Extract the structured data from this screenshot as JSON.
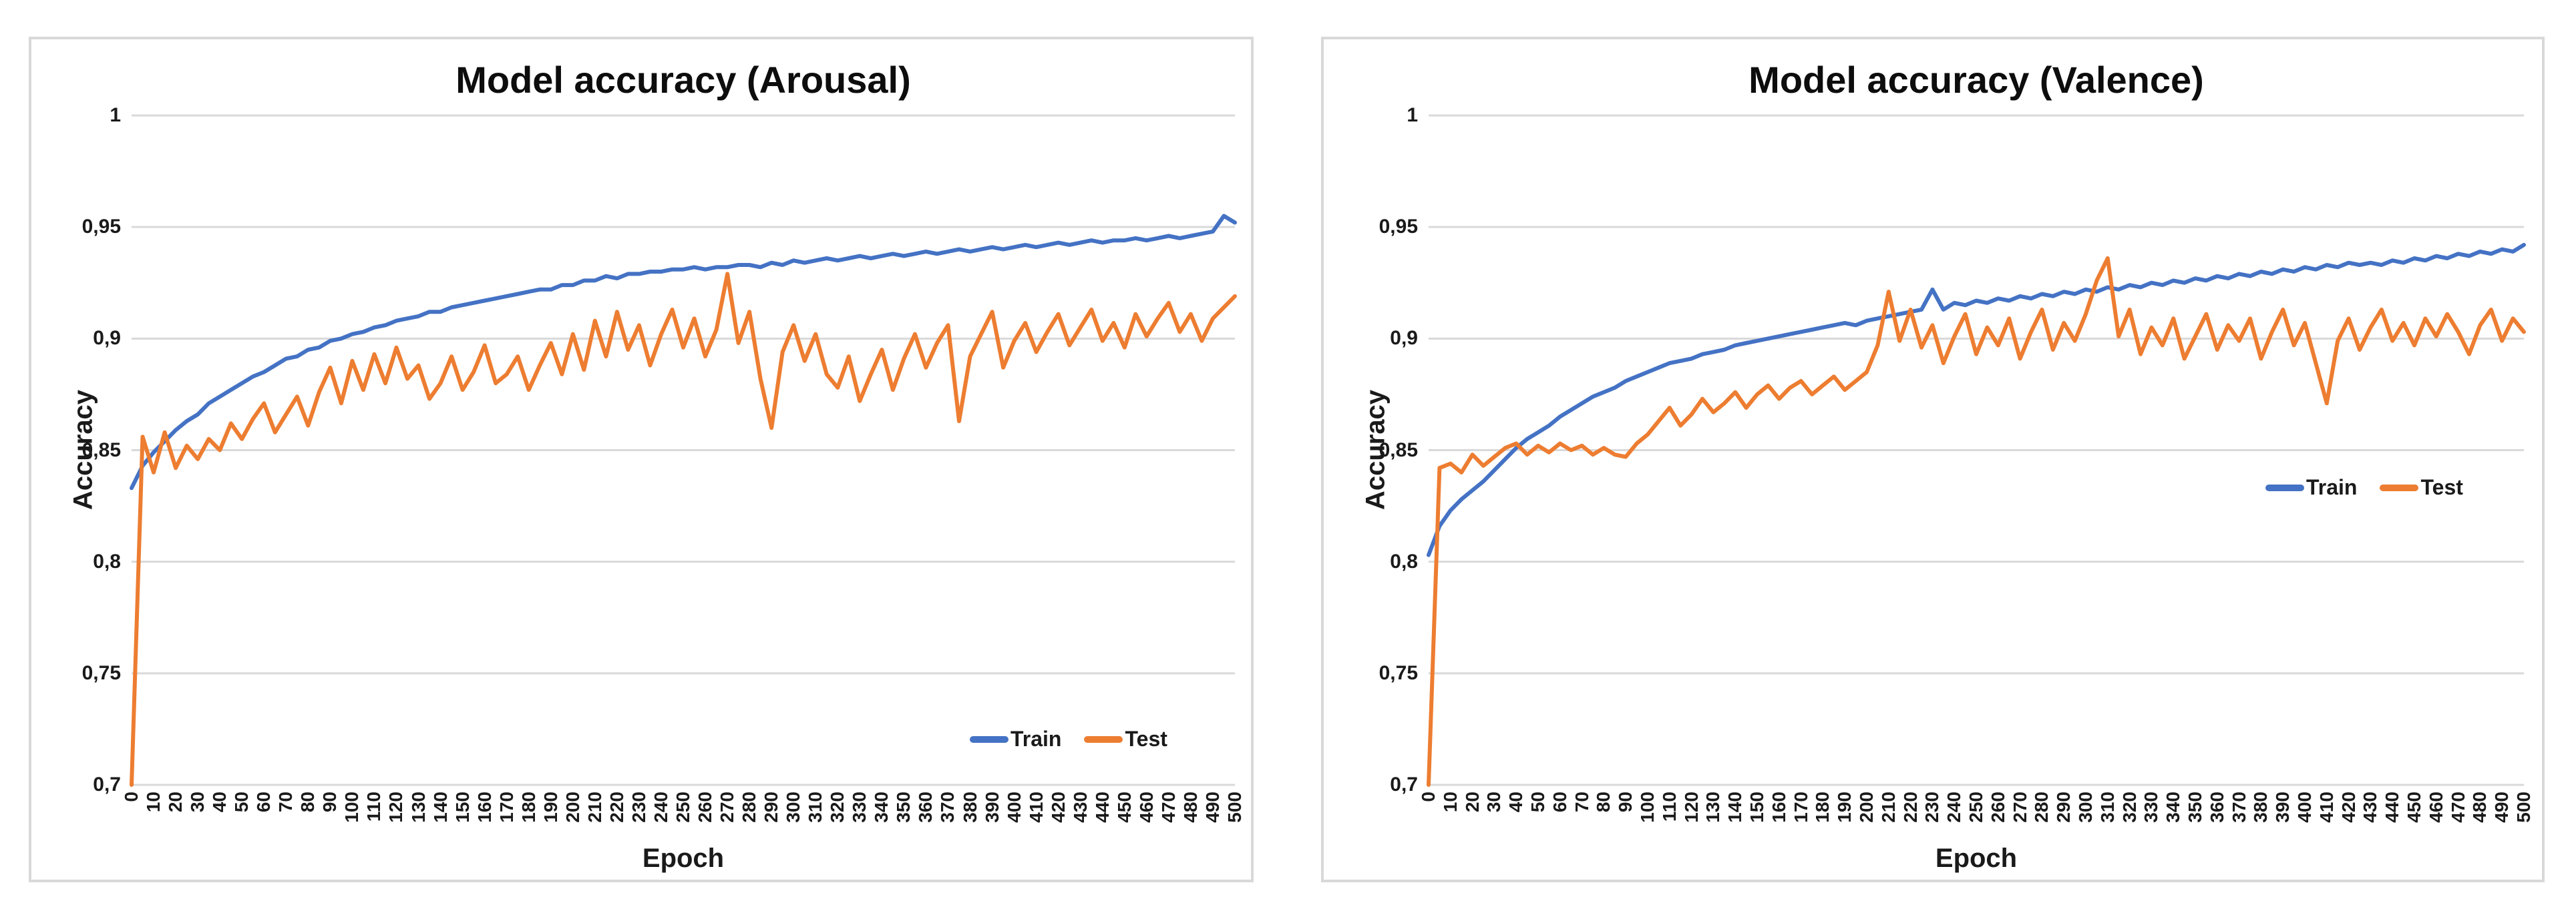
{
  "page": {
    "background_color": "#ffffff",
    "panel_border_color": "#d9d9d9"
  },
  "chart_data": [
    {
      "type": "line",
      "title": "Model accuracy (Arousal)",
      "gridline_color": "#d9d9d9",
      "x_axis": {
        "title": "Epoch",
        "min": 0,
        "max": 500,
        "tick_values": [
          0,
          10,
          20,
          30,
          40,
          50,
          60,
          70,
          80,
          90,
          100,
          110,
          120,
          130,
          140,
          150,
          160,
          170,
          180,
          190,
          200,
          210,
          220,
          230,
          240,
          250,
          260,
          270,
          280,
          290,
          300,
          310,
          320,
          330,
          340,
          350,
          360,
          370,
          380,
          390,
          400,
          410,
          420,
          430,
          440,
          450,
          460,
          470,
          480,
          490,
          500
        ],
        "tick_labels": [
          "0",
          "10",
          "20",
          "30",
          "40",
          "50",
          "60",
          "70",
          "80",
          "90",
          "100",
          "110",
          "120",
          "130",
          "140",
          "150",
          "160",
          "170",
          "180",
          "190",
          "200",
          "210",
          "220",
          "230",
          "240",
          "250",
          "260",
          "270",
          "280",
          "290",
          "300",
          "310",
          "320",
          "330",
          "340",
          "350",
          "360",
          "370",
          "380",
          "390",
          "400",
          "410",
          "420",
          "430",
          "440",
          "450",
          "460",
          "470",
          "480",
          "490",
          "500"
        ]
      },
      "y_axis": {
        "title": "Accuracy",
        "min": 0.7,
        "max": 1.0,
        "tick_values": [
          1,
          0.95,
          0.9,
          0.85,
          0.8,
          0.75,
          0.7
        ],
        "tick_labels": [
          "1",
          "0,95",
          "0,9",
          "0,85",
          "0,8",
          "0,75",
          "0,7"
        ]
      },
      "legend": {
        "position": "inside-bottom-right",
        "items": [
          {
            "label": "Train",
            "color": "#4472c4"
          },
          {
            "label": "Test",
            "color": "#ed7d31"
          }
        ]
      },
      "x_values": [
        0,
        5,
        10,
        15,
        20,
        25,
        30,
        35,
        40,
        45,
        50,
        55,
        60,
        65,
        70,
        75,
        80,
        85,
        90,
        95,
        100,
        105,
        110,
        115,
        120,
        125,
        130,
        135,
        140,
        145,
        150,
        155,
        160,
        165,
        170,
        175,
        180,
        185,
        190,
        195,
        200,
        205,
        210,
        215,
        220,
        225,
        230,
        235,
        240,
        245,
        250,
        255,
        260,
        265,
        270,
        275,
        280,
        285,
        290,
        295,
        300,
        305,
        310,
        315,
        320,
        325,
        330,
        335,
        340,
        345,
        350,
        355,
        360,
        365,
        370,
        375,
        380,
        385,
        390,
        395,
        400,
        405,
        410,
        415,
        420,
        425,
        430,
        435,
        440,
        445,
        450,
        455,
        460,
        465,
        470,
        475,
        480,
        485,
        490,
        495,
        500
      ],
      "series": [
        {
          "name": "Train",
          "color": "#4472c4",
          "values": [
            0.833,
            0.843,
            0.849,
            0.854,
            0.859,
            0.863,
            0.866,
            0.871,
            0.874,
            0.877,
            0.88,
            0.883,
            0.885,
            0.888,
            0.891,
            0.892,
            0.895,
            0.896,
            0.899,
            0.9,
            0.902,
            0.903,
            0.905,
            0.906,
            0.908,
            0.909,
            0.91,
            0.912,
            0.912,
            0.914,
            0.915,
            0.916,
            0.917,
            0.918,
            0.919,
            0.92,
            0.921,
            0.922,
            0.922,
            0.924,
            0.924,
            0.926,
            0.926,
            0.928,
            0.927,
            0.929,
            0.929,
            0.93,
            0.93,
            0.931,
            0.931,
            0.932,
            0.931,
            0.932,
            0.932,
            0.933,
            0.933,
            0.932,
            0.934,
            0.933,
            0.935,
            0.934,
            0.935,
            0.936,
            0.935,
            0.936,
            0.937,
            0.936,
            0.937,
            0.938,
            0.937,
            0.938,
            0.939,
            0.938,
            0.939,
            0.94,
            0.939,
            0.94,
            0.941,
            0.94,
            0.941,
            0.942,
            0.941,
            0.942,
            0.943,
            0.942,
            0.943,
            0.944,
            0.943,
            0.944,
            0.944,
            0.945,
            0.944,
            0.945,
            0.946,
            0.945,
            0.946,
            0.947,
            0.948,
            0.955,
            0.952
          ]
        },
        {
          "name": "Test",
          "color": "#ed7d31",
          "values": [
            0.7,
            0.856,
            0.84,
            0.858,
            0.842,
            0.852,
            0.846,
            0.855,
            0.85,
            0.862,
            0.855,
            0.864,
            0.871,
            0.858,
            0.866,
            0.874,
            0.861,
            0.876,
            0.887,
            0.871,
            0.89,
            0.877,
            0.893,
            0.88,
            0.896,
            0.882,
            0.888,
            0.873,
            0.88,
            0.892,
            0.877,
            0.885,
            0.897,
            0.88,
            0.884,
            0.892,
            0.877,
            0.888,
            0.898,
            0.884,
            0.902,
            0.886,
            0.908,
            0.892,
            0.912,
            0.895,
            0.906,
            0.888,
            0.902,
            0.913,
            0.896,
            0.909,
            0.892,
            0.904,
            0.929,
            0.898,
            0.912,
            0.882,
            0.86,
            0.894,
            0.906,
            0.89,
            0.902,
            0.884,
            0.878,
            0.892,
            0.872,
            0.884,
            0.895,
            0.877,
            0.891,
            0.902,
            0.887,
            0.898,
            0.906,
            0.863,
            0.892,
            0.902,
            0.912,
            0.887,
            0.899,
            0.907,
            0.894,
            0.903,
            0.911,
            0.897,
            0.905,
            0.913,
            0.899,
            0.907,
            0.896,
            0.911,
            0.901,
            0.909,
            0.916,
            0.903,
            0.911,
            0.899,
            0.909,
            0.914,
            0.919
          ]
        }
      ]
    },
    {
      "type": "line",
      "title": "Model accuracy (Valence)",
      "gridline_color": "#d9d9d9",
      "x_axis": {
        "title": "Epoch",
        "min": 0,
        "max": 500,
        "tick_values": [
          0,
          10,
          20,
          30,
          40,
          50,
          60,
          70,
          80,
          90,
          100,
          110,
          120,
          130,
          140,
          150,
          160,
          170,
          180,
          190,
          200,
          210,
          220,
          230,
          240,
          250,
          260,
          270,
          280,
          290,
          300,
          310,
          320,
          330,
          340,
          350,
          360,
          370,
          380,
          390,
          400,
          410,
          420,
          430,
          440,
          450,
          460,
          470,
          480,
          490,
          500
        ],
        "tick_labels": [
          "0",
          "10",
          "20",
          "30",
          "40",
          "50",
          "60",
          "70",
          "80",
          "90",
          "100",
          "110",
          "120",
          "130",
          "140",
          "150",
          "160",
          "170",
          "180",
          "190",
          "200",
          "210",
          "220",
          "230",
          "240",
          "250",
          "260",
          "270",
          "280",
          "290",
          "300",
          "310",
          "320",
          "330",
          "340",
          "350",
          "360",
          "370",
          "380",
          "390",
          "400",
          "410",
          "420",
          "430",
          "440",
          "450",
          "460",
          "470",
          "480",
          "490",
          "500"
        ]
      },
      "y_axis": {
        "title": "Accuracy",
        "min": 0.7,
        "max": 1.0,
        "tick_values": [
          1,
          0.95,
          0.9,
          0.85,
          0.8,
          0.75,
          0.7
        ],
        "tick_labels": [
          "1",
          "0,95",
          "0,9",
          "0,85",
          "0,8",
          "0,75",
          "0,7"
        ]
      },
      "legend": {
        "position": "inside-middle-right",
        "items": [
          {
            "label": "Train",
            "color": "#4472c4"
          },
          {
            "label": "Test",
            "color": "#ed7d31"
          }
        ]
      },
      "x_values": [
        0,
        5,
        10,
        15,
        20,
        25,
        30,
        35,
        40,
        45,
        50,
        55,
        60,
        65,
        70,
        75,
        80,
        85,
        90,
        95,
        100,
        105,
        110,
        115,
        120,
        125,
        130,
        135,
        140,
        145,
        150,
        155,
        160,
        165,
        170,
        175,
        180,
        185,
        190,
        195,
        200,
        205,
        210,
        215,
        220,
        225,
        230,
        235,
        240,
        245,
        250,
        255,
        260,
        265,
        270,
        275,
        280,
        285,
        290,
        295,
        300,
        305,
        310,
        315,
        320,
        325,
        330,
        335,
        340,
        345,
        350,
        355,
        360,
        365,
        370,
        375,
        380,
        385,
        390,
        395,
        400,
        405,
        410,
        415,
        420,
        425,
        430,
        435,
        440,
        445,
        450,
        455,
        460,
        465,
        470,
        475,
        480,
        485,
        490,
        495,
        500
      ],
      "series": [
        {
          "name": "Train",
          "color": "#4472c4",
          "values": [
            0.803,
            0.816,
            0.823,
            0.828,
            0.832,
            0.836,
            0.841,
            0.846,
            0.851,
            0.855,
            0.858,
            0.861,
            0.865,
            0.868,
            0.871,
            0.874,
            0.876,
            0.878,
            0.881,
            0.883,
            0.885,
            0.887,
            0.889,
            0.89,
            0.891,
            0.893,
            0.894,
            0.895,
            0.897,
            0.898,
            0.899,
            0.9,
            0.901,
            0.902,
            0.903,
            0.904,
            0.905,
            0.906,
            0.907,
            0.906,
            0.908,
            0.909,
            0.91,
            0.911,
            0.912,
            0.913,
            0.922,
            0.913,
            0.916,
            0.915,
            0.917,
            0.916,
            0.918,
            0.917,
            0.919,
            0.918,
            0.92,
            0.919,
            0.921,
            0.92,
            0.922,
            0.921,
            0.923,
            0.922,
            0.924,
            0.923,
            0.925,
            0.924,
            0.926,
            0.925,
            0.927,
            0.926,
            0.928,
            0.927,
            0.929,
            0.928,
            0.93,
            0.929,
            0.931,
            0.93,
            0.932,
            0.931,
            0.933,
            0.932,
            0.934,
            0.933,
            0.934,
            0.933,
            0.935,
            0.934,
            0.936,
            0.935,
            0.937,
            0.936,
            0.938,
            0.937,
            0.939,
            0.938,
            0.94,
            0.939,
            0.942
          ]
        },
        {
          "name": "Test",
          "color": "#ed7d31",
          "values": [
            0.7,
            0.842,
            0.844,
            0.84,
            0.848,
            0.843,
            0.847,
            0.851,
            0.853,
            0.848,
            0.852,
            0.849,
            0.853,
            0.85,
            0.852,
            0.848,
            0.851,
            0.848,
            0.847,
            0.853,
            0.857,
            0.863,
            0.869,
            0.861,
            0.866,
            0.873,
            0.867,
            0.871,
            0.876,
            0.869,
            0.875,
            0.879,
            0.873,
            0.878,
            0.881,
            0.875,
            0.879,
            0.883,
            0.877,
            0.881,
            0.885,
            0.897,
            0.921,
            0.899,
            0.913,
            0.896,
            0.906,
            0.889,
            0.901,
            0.911,
            0.893,
            0.905,
            0.897,
            0.909,
            0.891,
            0.903,
            0.913,
            0.895,
            0.907,
            0.899,
            0.911,
            0.926,
            0.936,
            0.901,
            0.913,
            0.893,
            0.905,
            0.897,
            0.909,
            0.891,
            0.901,
            0.911,
            0.895,
            0.906,
            0.899,
            0.909,
            0.891,
            0.903,
            0.913,
            0.897,
            0.907,
            0.889,
            0.871,
            0.899,
            0.909,
            0.895,
            0.905,
            0.913,
            0.899,
            0.907,
            0.897,
            0.909,
            0.901,
            0.911,
            0.903,
            0.893,
            0.906,
            0.913,
            0.899,
            0.909,
            0.903
          ]
        }
      ]
    }
  ]
}
